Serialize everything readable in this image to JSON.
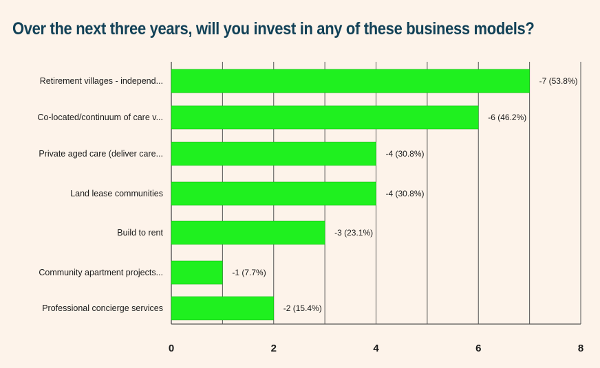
{
  "page": {
    "title": "Over the next three years, will you invest in any of these business models?"
  },
  "chart_data": {
    "type": "bar",
    "orientation": "horizontal",
    "title": "Over the next three years, will you invest in any of these business models?",
    "categories": [
      "Retirement villages - independ...",
      "Co-located/continuum of care v...",
      "Private aged care (deliver care...",
      "Land lease communities",
      "Build to rent",
      "Community apartment projects...",
      "Professional concierge services"
    ],
    "values": [
      7,
      6,
      4,
      4,
      3,
      1,
      2
    ],
    "data_labels": [
      "-7 (53.8%)",
      "-6 (46.2%)",
      "-4 (30.8%)",
      "-4 (30.8%)",
      "-3 (23.1%)",
      "-1 (7.7%)",
      "-2 (15.4%)"
    ],
    "xlim": [
      0,
      8
    ],
    "x_ticks": [
      0,
      2,
      4,
      6,
      8
    ],
    "grid": true,
    "bar_color": "#1ff01f",
    "gridline_color": "#555555"
  }
}
